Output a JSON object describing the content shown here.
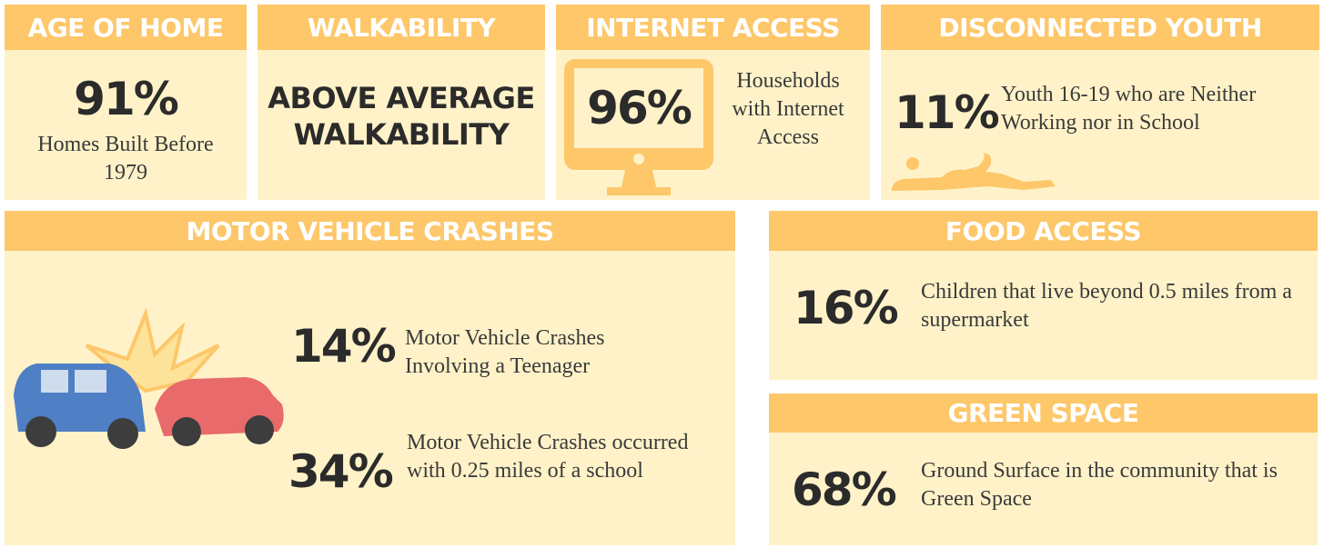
{
  "panels": [
    {
      "title": "AGE OF HOME",
      "stat": "91%",
      "text": "Homes Built Before 1979"
    },
    {
      "title": "WALKABILITY",
      "stat": "ABOVE AVERAGE WALKABILITY"
    },
    {
      "title": "INTERNET ACCESS",
      "stat": "96%",
      "text": "Households with Internet Access"
    },
    {
      "title": "DISCONNECTED YOUTH",
      "stat": "11%",
      "text": "Youth 16-19 who are Neither Working nor in School"
    },
    {
      "title": "MOTOR VEHICLE CRASHES",
      "items": [
        {
          "stat": "14%",
          "text": "Motor Vehicle Crashes Involving a Teenager"
        },
        {
          "stat": "34%",
          "text": "Motor Vehicle Crashes occurred with 0.25 miles of a school"
        }
      ]
    },
    {
      "title": "FOOD ACCESS",
      "stat": "16%",
      "text": "Children that live beyond 0.5 miles from a supermarket"
    },
    {
      "title": "GREEN SPACE",
      "stat": "68%",
      "text": "Ground Surface in the community that is Green Space"
    }
  ]
}
